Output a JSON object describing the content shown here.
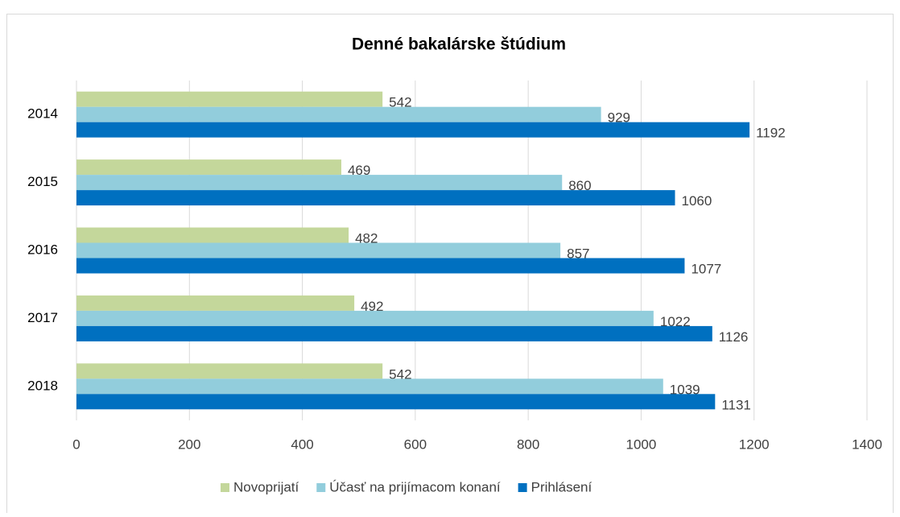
{
  "chart_data": {
    "type": "barh",
    "title": "Denné bakalárske štúdium",
    "categories": [
      "2014",
      "2015",
      "2016",
      "2017",
      "2018"
    ],
    "series": [
      {
        "name": "Novoprijatí",
        "color": "#c4d79b",
        "values": [
          542,
          469,
          482,
          492,
          542
        ]
      },
      {
        "name": "Účasť na prijímacom konaní",
        "color": "#92cddc",
        "values": [
          929,
          860,
          857,
          1022,
          1039
        ]
      },
      {
        "name": "Prihlásení",
        "color": "#0070c0",
        "values": [
          1192,
          1060,
          1077,
          1126,
          1131
        ]
      }
    ],
    "xlim": [
      0,
      1400
    ],
    "xticks": [
      0,
      200,
      400,
      600,
      800,
      1000,
      1200,
      1400
    ],
    "grid": true,
    "legend": "bottom"
  }
}
